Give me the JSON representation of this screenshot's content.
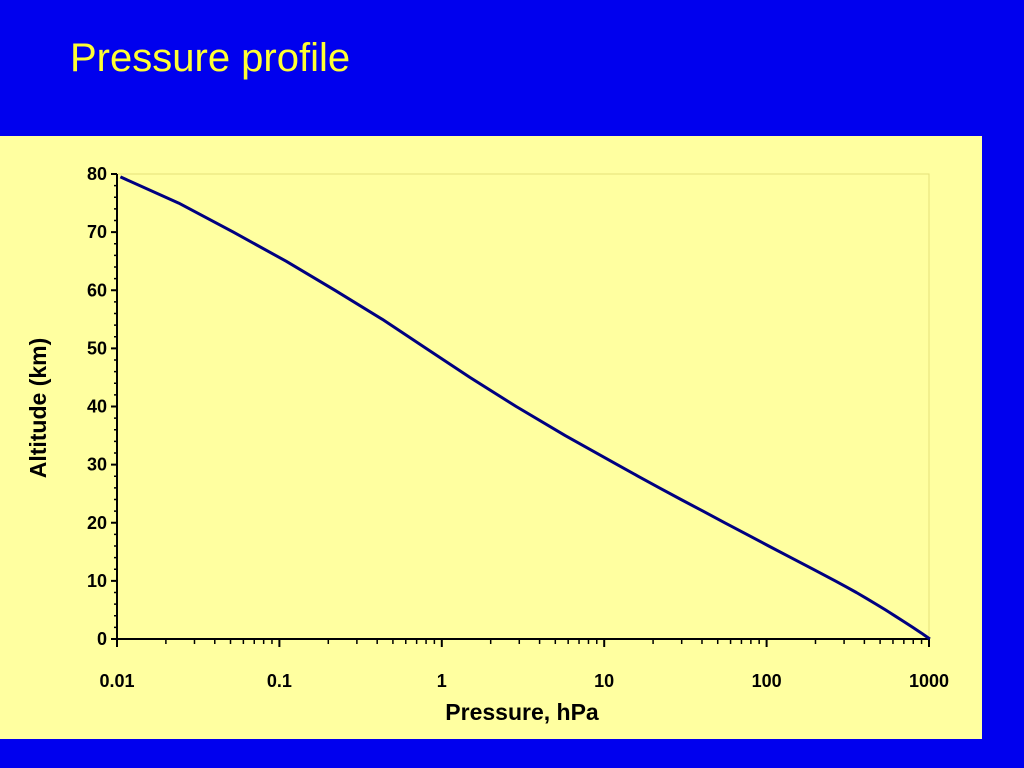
{
  "slide": {
    "title": "Pressure profile",
    "background_color": "#0000ee",
    "title_color": "#ffff33",
    "panel_color": "#ffffa0"
  },
  "chart_data": {
    "type": "line",
    "xlabel": "Pressure, hPa",
    "ylabel": "Altitude (km)",
    "x_scale": "log",
    "xlim": [
      0.01,
      1000
    ],
    "ylim": [
      0,
      80
    ],
    "x_ticks": [
      0.01,
      0.1,
      1,
      10,
      100,
      1000
    ],
    "x_tick_labels": [
      "0.01",
      "0.1",
      "1",
      "10",
      "100",
      "1000"
    ],
    "y_ticks": [
      0,
      10,
      20,
      30,
      40,
      50,
      60,
      70,
      80
    ],
    "y_tick_labels": [
      "0",
      "10",
      "20",
      "30",
      "40",
      "50",
      "60",
      "70",
      "80"
    ],
    "grid": false,
    "line_color": "#000080",
    "series": [
      {
        "x": [
          1013,
          900,
          795,
          701,
          616,
          540,
          472,
          411,
          357,
          308,
          265,
          194,
          141,
          103,
          75.6,
          55.3,
          40.5,
          29.7,
          21.9,
          16.2,
          12,
          5.75,
          2.87,
          1.49,
          0.8,
          0.43,
          0.22,
          0.11,
          0.052,
          0.024,
          0.0105
        ],
        "y": [
          0,
          1,
          2,
          3,
          4,
          5,
          6,
          7,
          8,
          9,
          10,
          12,
          14,
          16,
          18,
          20,
          22,
          24,
          26,
          28,
          30,
          35,
          40,
          45,
          50,
          55,
          60,
          65,
          70,
          75,
          79.5
        ]
      }
    ]
  }
}
